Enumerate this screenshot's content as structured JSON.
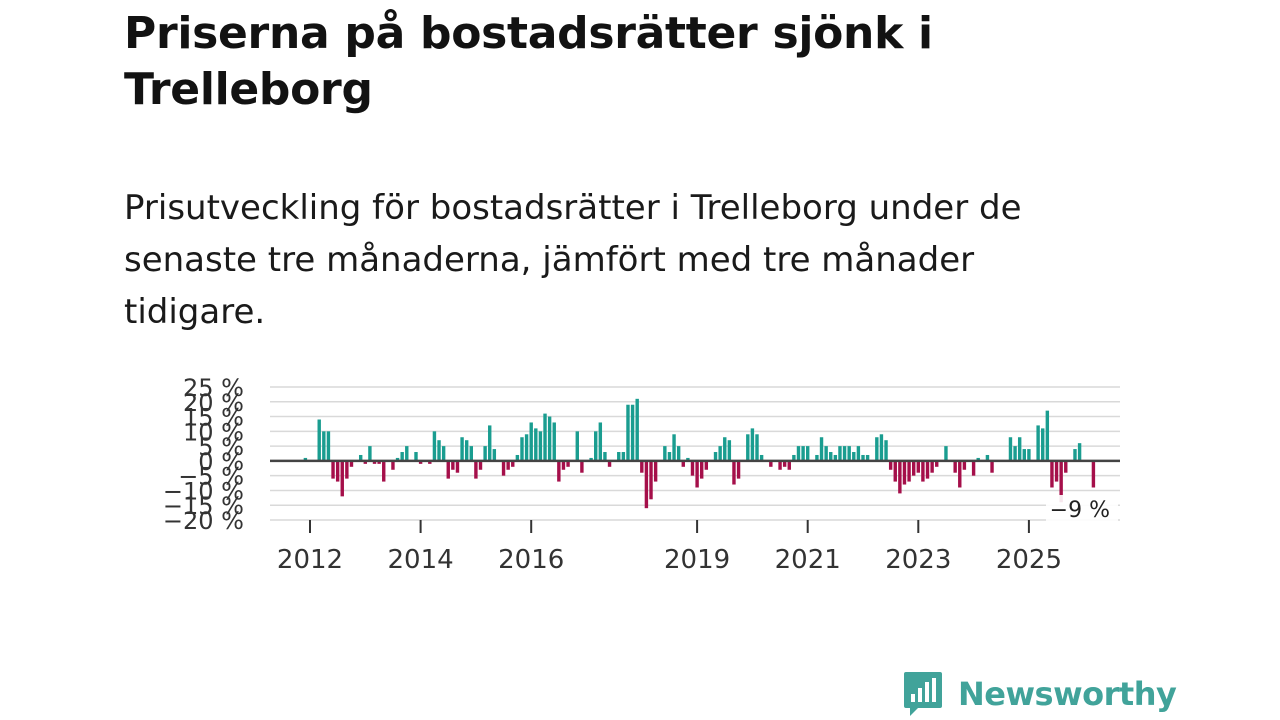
{
  "header": {
    "title": "Priserna på bostadsrätter sjönk i Trelleborg",
    "subtitle": "Prisutveckling för bostadsrätter i Trelleborg under de senaste tre månaderna, jämfört med tre månader tidigare."
  },
  "brand": {
    "name": "Newsworthy"
  },
  "colors": {
    "positive": "#1a9d90",
    "negative": "#a50f4a",
    "logo": "#41a39a"
  },
  "chart_data": {
    "type": "bar",
    "title": "Priserna på bostadsrätter sjönk i Trelleborg",
    "xlabel": "",
    "ylabel": "",
    "ylim": [
      -20,
      25
    ],
    "y_ticks": [
      25,
      20,
      15,
      10,
      5,
      0,
      -5,
      -10,
      -15,
      -20
    ],
    "y_tick_labels": [
      "25 %",
      "20 %",
      "15 %",
      "10 %",
      "5 %",
      "0 %",
      "−5 %",
      "−10 %",
      "−15 %",
      "−20 %"
    ],
    "x_ticks": [
      2012,
      2014,
      2016,
      2019,
      2021,
      2023,
      2025
    ],
    "x_tick_labels": [
      "2012",
      "2014",
      "2016",
      "2019",
      "2021",
      "2023",
      "2025"
    ],
    "start": "2011-12",
    "grid": true,
    "last_value_label": "−9 %",
    "values": [
      1,
      0,
      0,
      14,
      10,
      10,
      -6,
      -7,
      -12,
      -6,
      -2,
      0,
      2,
      -1,
      5,
      -1,
      -1,
      -7,
      0,
      -3,
      1,
      3,
      5,
      0,
      3,
      -1,
      0,
      -1,
      10,
      7,
      5,
      -6,
      -3,
      -4,
      8,
      7,
      5,
      -6,
      -3,
      5,
      12,
      4,
      0,
      -5,
      -3,
      -2,
      2,
      8,
      9,
      13,
      11,
      10,
      16,
      15,
      13,
      -7,
      -3,
      -2,
      0,
      10,
      -4,
      0,
      1,
      10,
      13,
      3,
      -2,
      0,
      3,
      3,
      19,
      19,
      21,
      -4,
      -16,
      -13,
      -7,
      0,
      5,
      3,
      9,
      5,
      -2,
      1,
      -5,
      -9,
      -6,
      -3,
      0,
      3,
      5,
      8,
      7,
      -8,
      -6,
      0,
      9,
      11,
      9,
      2,
      0,
      -2,
      0,
      -3,
      -2,
      -3,
      2,
      5,
      5,
      5,
      0,
      2,
      8,
      5,
      3,
      2,
      5,
      5,
      5,
      3,
      5,
      2,
      2,
      0,
      8,
      9,
      7,
      -3,
      -7,
      -11,
      -8,
      -7,
      -5,
      -4,
      -7,
      -6,
      -4,
      -2,
      0,
      5,
      0,
      -4,
      -9,
      -3,
      0,
      -5,
      1,
      0,
      2,
      -4,
      0,
      0,
      0,
      8,
      5,
      8,
      4,
      4,
      0,
      12,
      11,
      17,
      -9,
      -7,
      -14,
      -4,
      0,
      4,
      6,
      0,
      0,
      -9
    ]
  }
}
